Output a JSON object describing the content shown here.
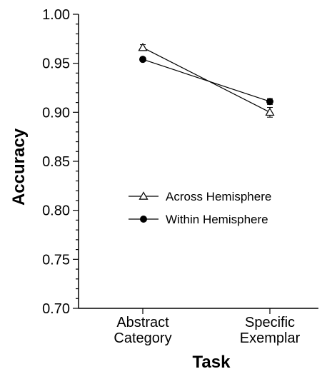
{
  "chart_data": {
    "type": "line",
    "xlabel": "Task",
    "ylabel": "Accuracy",
    "categories": [
      [
        "Abstract",
        "Category"
      ],
      [
        "Specific",
        "Exemplar"
      ]
    ],
    "ylim": [
      0.7,
      1.0
    ],
    "yticks": [
      "0.70",
      "0.75",
      "0.80",
      "0.85",
      "0.90",
      "0.95",
      "1.00"
    ],
    "ytick_values": [
      0.7,
      0.75,
      0.8,
      0.85,
      0.9,
      0.95,
      1.0
    ],
    "minor_step": 0.01,
    "grid": false,
    "legend_position": "center-right",
    "series": [
      {
        "name": "Across Hemisphere",
        "marker": "open-triangle",
        "values": [
          0.966,
          0.9
        ],
        "errors": [
          0.003,
          0.005
        ]
      },
      {
        "name": "Within Hemisphere",
        "marker": "filled-circle",
        "values": [
          0.954,
          0.911
        ],
        "errors": [
          0.002,
          0.003
        ]
      }
    ]
  }
}
